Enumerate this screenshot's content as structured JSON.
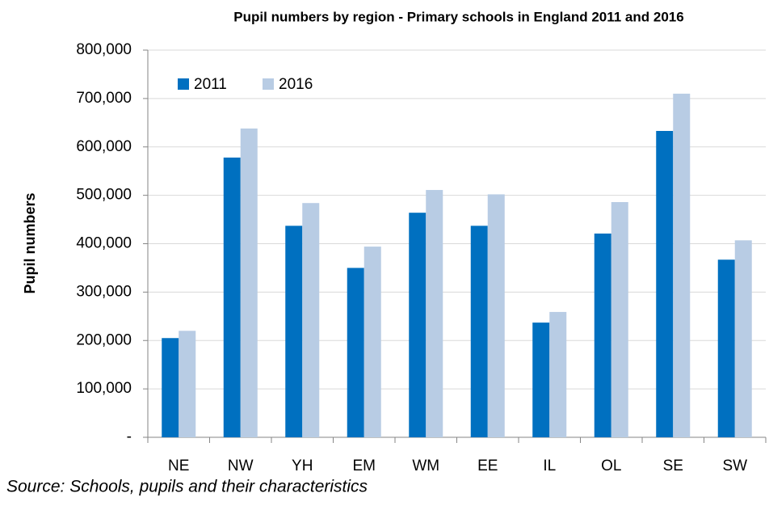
{
  "chart_data": {
    "type": "bar",
    "title": "Pupil numbers by region - Primary schools in England 2011 and 2016",
    "y_label": "Pupil numbers",
    "source": "Source: Schools, pupils and their characteristics",
    "categories": [
      "NE",
      "NW",
      "YH",
      "EM",
      "WM",
      "EE",
      "IL",
      "OL",
      "SE",
      "SW"
    ],
    "series": [
      {
        "name": "2011",
        "color": "#0070c0",
        "values": [
          205000,
          578000,
          437000,
          350000,
          464000,
          437000,
          237000,
          421000,
          633000,
          367000
        ]
      },
      {
        "name": "2016",
        "color": "#b8cce4",
        "values": [
          220000,
          638000,
          484000,
          394000,
          511000,
          502000,
          259000,
          486000,
          710000,
          407000
        ]
      }
    ],
    "ylim": [
      0,
      800000
    ],
    "yticks": [
      {
        "value": 0,
        "label": "-"
      },
      {
        "value": 100000,
        "label": "100,000"
      },
      {
        "value": 200000,
        "label": "200,000"
      },
      {
        "value": 300000,
        "label": "300,000"
      },
      {
        "value": 400000,
        "label": "400,000"
      },
      {
        "value": 500000,
        "label": "500,000"
      },
      {
        "value": 600000,
        "label": "600,000"
      },
      {
        "value": 700000,
        "label": "700,000"
      },
      {
        "value": 800000,
        "label": "800,000"
      }
    ],
    "grid": true,
    "legend": "top-left"
  }
}
